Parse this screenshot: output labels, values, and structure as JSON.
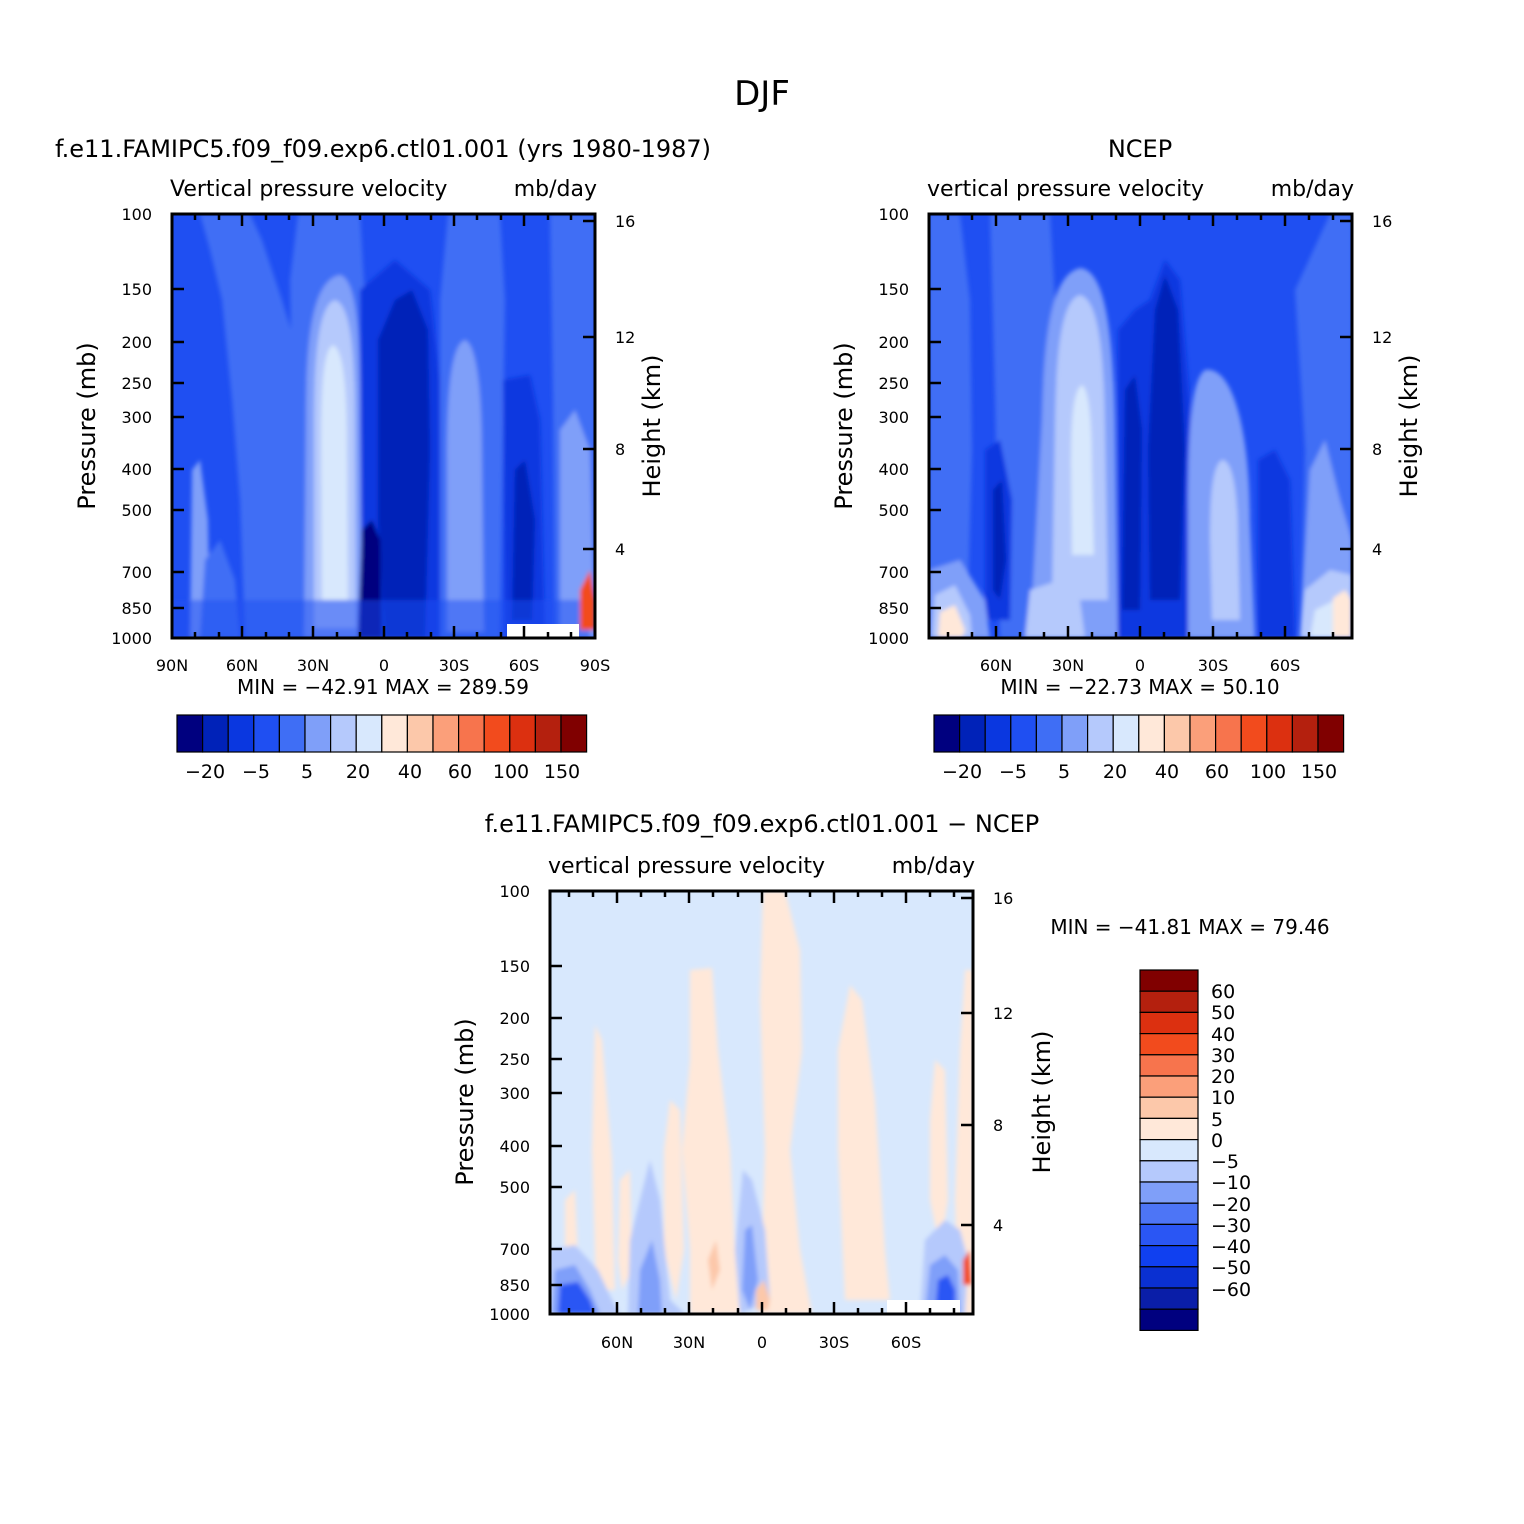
{
  "page": {
    "title": "DJF"
  },
  "colors": {
    "model_panel_scale": [
      "#00007f",
      "#0022b8",
      "#0a37e0",
      "#1f4ff2",
      "#3f6ef5",
      "#7f9ff9",
      "#b5c9fc",
      "#d8e8fd",
      "#ffe8d9",
      "#fcc8aa",
      "#fb9f7a",
      "#f7744d",
      "#f24b1d",
      "#dc3010",
      "#b4200e",
      "#800000"
    ],
    "diff_panel_scale": [
      "#00007f",
      "#0a1ea8",
      "#0a30d2",
      "#1040f0",
      "#2a56f4",
      "#4d75f6",
      "#7f9ff9",
      "#b5c9fc",
      "#d8e8fd",
      "#ffe8d9",
      "#fcc8aa",
      "#fb9f7a",
      "#f7744d",
      "#f24b1d",
      "#dc3010",
      "#b4200e",
      "#800000"
    ]
  },
  "chart_data": [
    {
      "type": "heatmap",
      "title": "f.e11.FAMIPC5.f09_f09.exp6.ctl01.001 (yrs 1980-1987)",
      "subtitle_left": "Vertical pressure velocity",
      "subtitle_right": "mb/day",
      "ylabel": "Pressure (mb)",
      "ylabel_right": "Height (km)",
      "y_ticks": [
        "100",
        "150",
        "200",
        "250",
        "300",
        "400",
        "500",
        "700",
        "850",
        "1000"
      ],
      "y_right_ticks": [
        "16",
        "12",
        "8",
        "4"
      ],
      "x_ticks": [
        "90N",
        "60N",
        "30N",
        "0",
        "30S",
        "60S",
        "90S"
      ],
      "min_max": "MIN = −42.91   MAX = 289.59",
      "legend_labels": [
        "−20",
        "−5",
        "5",
        "20",
        "40",
        "60",
        "100",
        "150"
      ],
      "x_latitudes": [
        90,
        60,
        30,
        0,
        -30,
        -60,
        -90
      ],
      "pressure_levels": [
        100,
        150,
        200,
        250,
        300,
        400,
        500,
        700,
        850,
        1000
      ],
      "zlim": [
        -42.91,
        289.59
      ],
      "legend_placement": "below"
    },
    {
      "type": "heatmap",
      "title": "NCEP",
      "subtitle_left": "vertical pressure velocity",
      "subtitle_right": "mb/day",
      "ylabel": "Pressure (mb)",
      "ylabel_right": "Height (km)",
      "y_ticks": [
        "100",
        "150",
        "200",
        "250",
        "300",
        "400",
        "500",
        "700",
        "850",
        "1000"
      ],
      "y_right_ticks": [
        "16",
        "12",
        "8",
        "4"
      ],
      "x_ticks": [
        "60N",
        "30N",
        "0",
        "30S",
        "60S"
      ],
      "min_max": "MIN = −22.73   MAX =  50.10",
      "legend_labels": [
        "−20",
        "−5",
        "5",
        "20",
        "40",
        "60",
        "100",
        "150"
      ],
      "zlim": [
        -22.73,
        50.1
      ],
      "legend_placement": "below"
    },
    {
      "type": "heatmap",
      "title": "f.e11.FAMIPC5.f09_f09.exp6.ctl01.001 − NCEP",
      "subtitle_left": "vertical pressure velocity",
      "subtitle_right": "mb/day",
      "ylabel": "Pressure (mb)",
      "ylabel_right": "Height (km)",
      "y_ticks": [
        "100",
        "150",
        "200",
        "250",
        "300",
        "400",
        "500",
        "700",
        "850",
        "1000"
      ],
      "y_right_ticks": [
        "16",
        "12",
        "8",
        "4"
      ],
      "x_ticks": [
        "60N",
        "30N",
        "0",
        "30S",
        "60S"
      ],
      "min_max": "MIN = −41.81   MAX =   79.46",
      "legend_labels": [
        "60",
        "50",
        "40",
        "30",
        "20",
        "10",
        "5",
        "0",
        "−5",
        "−10",
        "−20",
        "−30",
        "−40",
        "−50",
        "−60"
      ],
      "zlim": [
        -41.81,
        79.46
      ],
      "legend_placement": "right"
    }
  ]
}
